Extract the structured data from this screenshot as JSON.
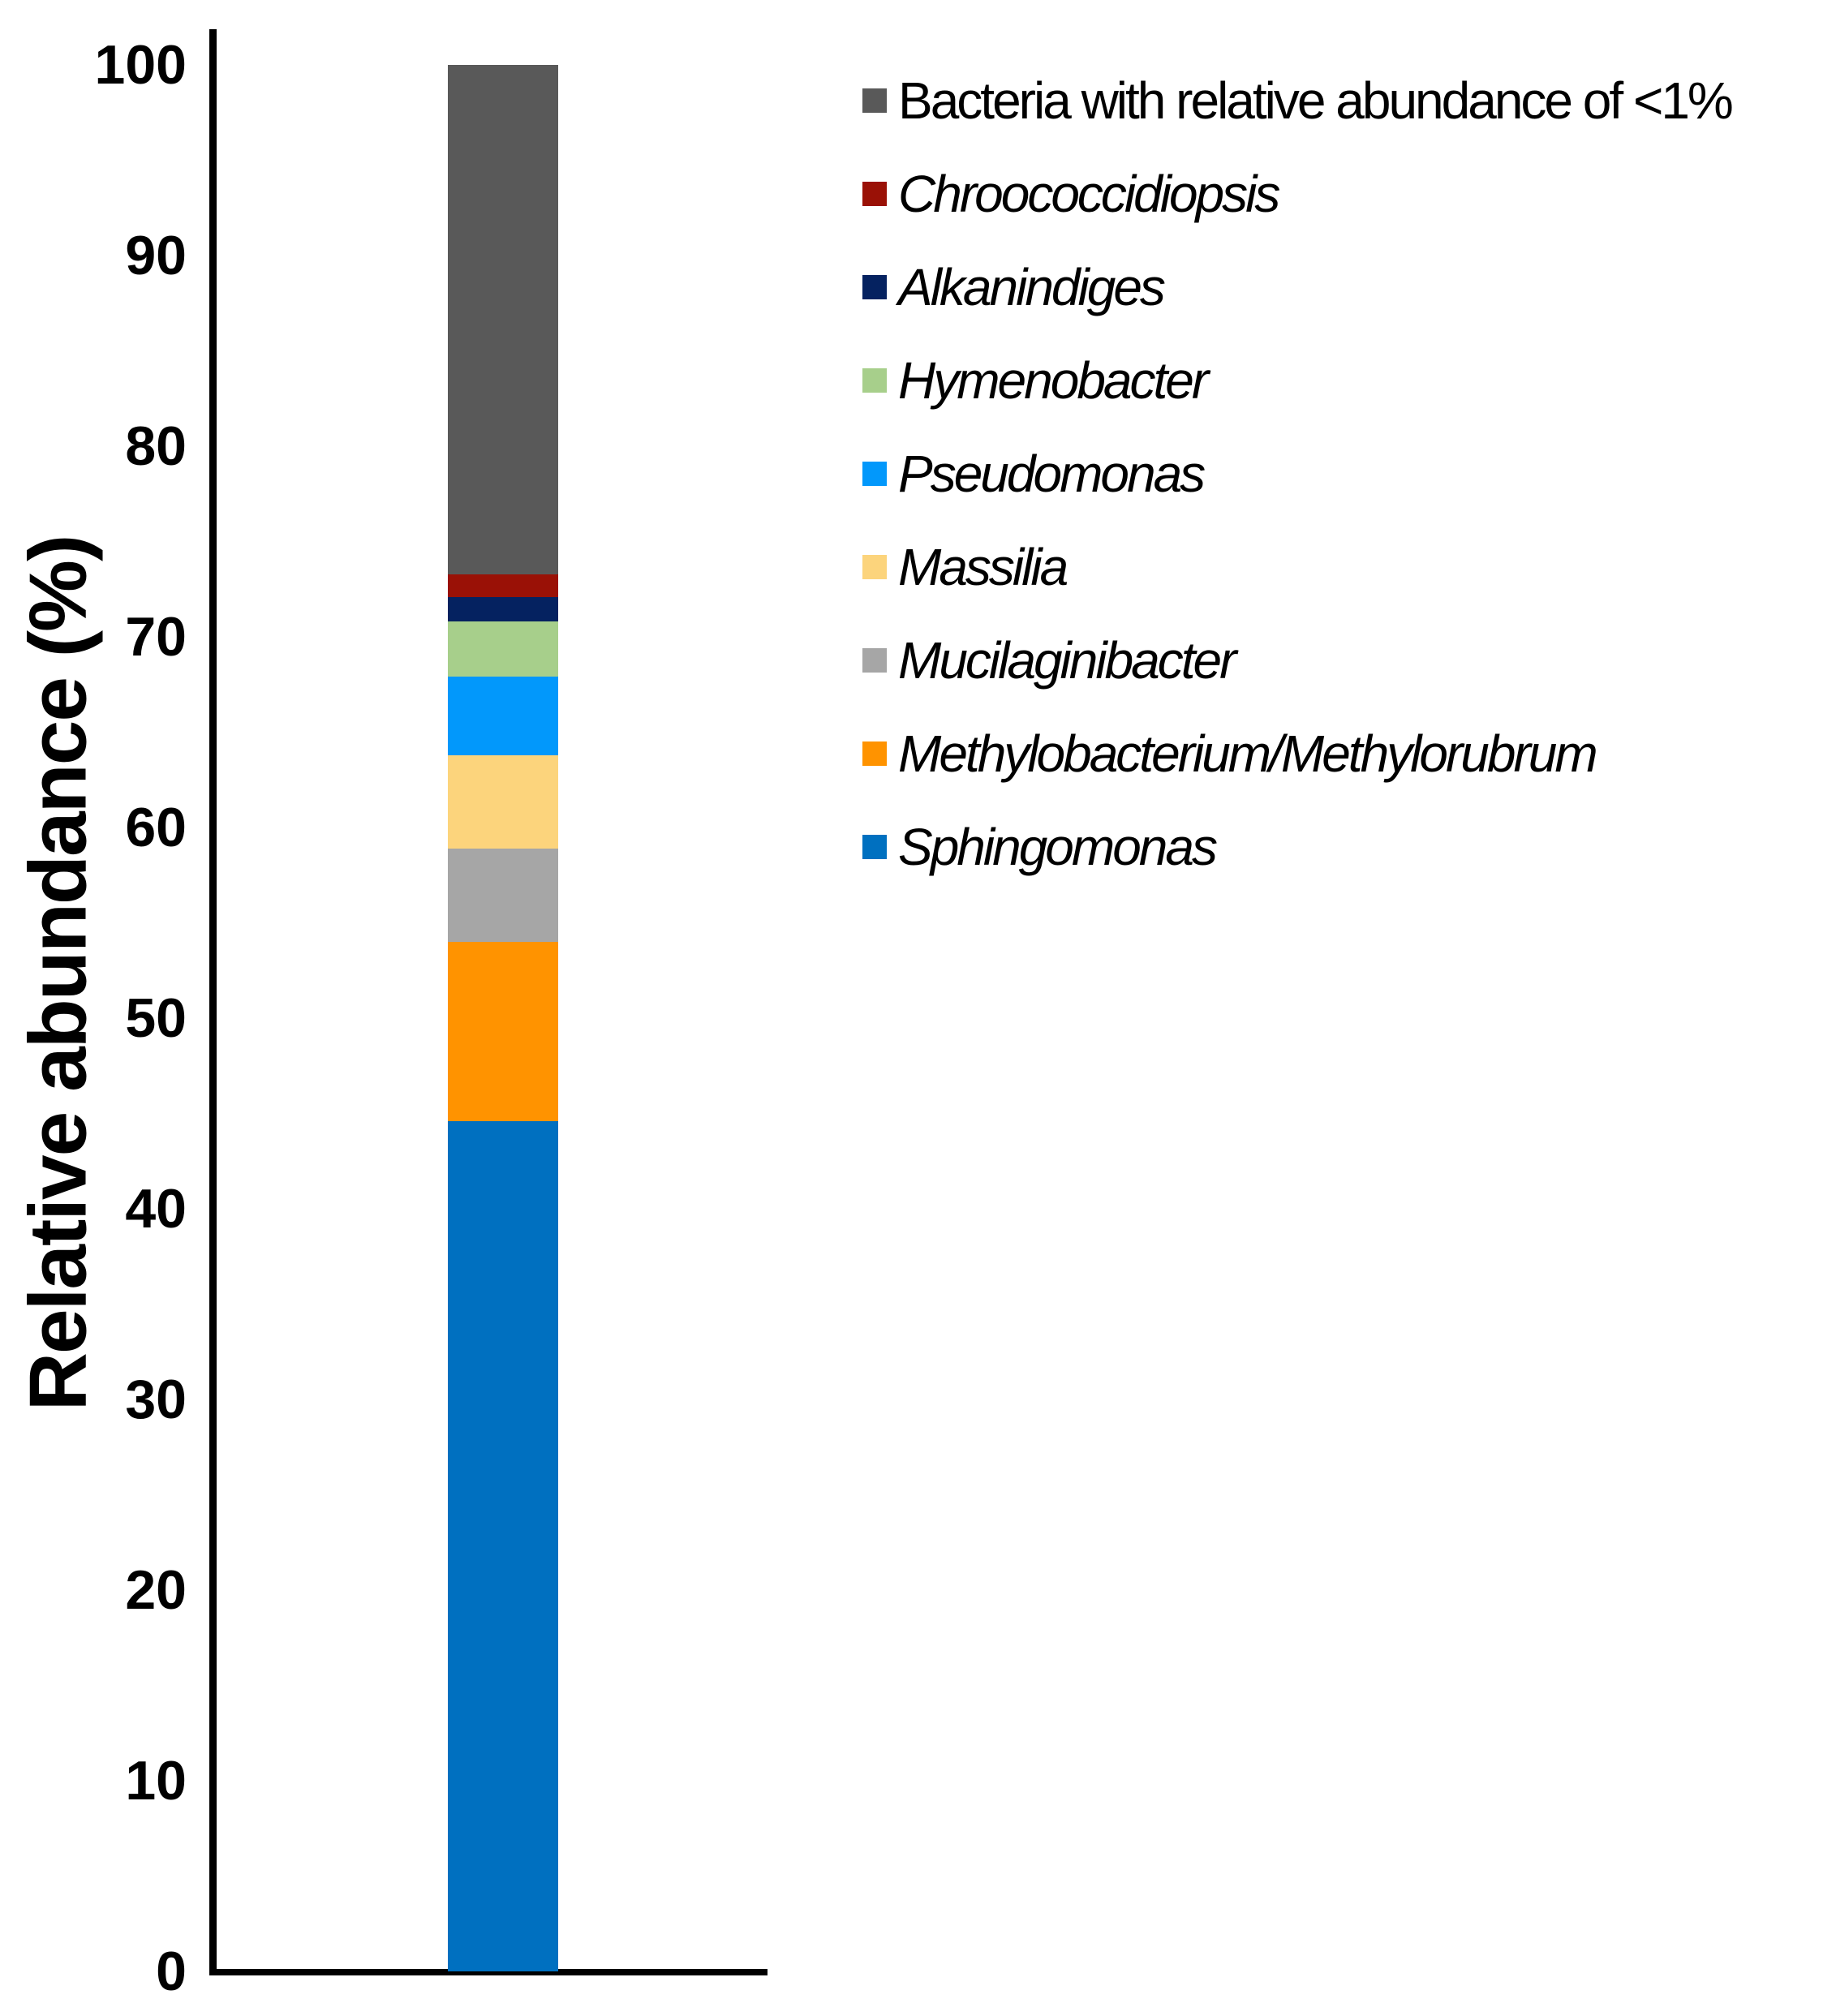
{
  "figure": {
    "background_color": "#FFFFFF",
    "axis_color": "#000000",
    "text_color": "#000000"
  },
  "y_axis": {
    "label": "Relative abundance (%)",
    "tick_labels": [
      "0",
      "10",
      "20",
      "30",
      "40",
      "50",
      "60",
      "70",
      "80",
      "90",
      "100"
    ],
    "min": 0,
    "max": 100
  },
  "legend": {
    "items": [
      {
        "label": "Bacteria with relative abundance of <1%",
        "color": "#595959",
        "italic": false
      },
      {
        "label": "Chroococcidiopsis",
        "color": "#9A1106",
        "italic": true
      },
      {
        "label": "Alkanindiges",
        "color": "#052260",
        "italic": true
      },
      {
        "label": "Hymenobacter",
        "color": "#A7CF8B",
        "italic": true
      },
      {
        "label": "Pseudomonas",
        "color": "#0298FB",
        "italic": true
      },
      {
        "label": "Massilia",
        "color": "#FCD47C",
        "italic": true
      },
      {
        "label": "Mucilaginibacter",
        "color": "#A6A6A6",
        "italic": true
      },
      {
        "label": "Methylobacterium/Methylorubrum",
        "color": "#FF9300",
        "italic": true
      },
      {
        "label": "Sphingomonas",
        "color": "#0070C0",
        "italic": true
      }
    ]
  },
  "chart_data": {
    "type": "bar",
    "stacked": true,
    "orientation": "vertical",
    "categories": [
      ""
    ],
    "series": [
      {
        "name": "Sphingomonas",
        "values": [
          44.6
        ],
        "color": "#0070C0"
      },
      {
        "name": "Methylobacterium/Methylorubrum",
        "values": [
          9.4
        ],
        "color": "#FF9300"
      },
      {
        "name": "Mucilaginibacter",
        "values": [
          4.9
        ],
        "color": "#A6A6A6"
      },
      {
        "name": "Massilia",
        "values": [
          4.9
        ],
        "color": "#FCD47C"
      },
      {
        "name": "Pseudomonas",
        "values": [
          4.1
        ],
        "color": "#0298FB"
      },
      {
        "name": "Hymenobacter",
        "values": [
          2.9
        ],
        "color": "#A7CF8B"
      },
      {
        "name": "Alkanindiges",
        "values": [
          1.3
        ],
        "color": "#052260"
      },
      {
        "name": "Chroococcidiopsis",
        "values": [
          1.2
        ],
        "color": "#9A1106"
      },
      {
        "name": "Bacteria with relative abundance of <1%",
        "values": [
          26.7
        ],
        "color": "#595959"
      }
    ],
    "title": "",
    "xlabel": "",
    "ylabel": "Relative abundance (%)",
    "ylim": [
      0,
      100
    ],
    "grid": false,
    "legend_position": "upper right",
    "bar_order": "bottom_to_top"
  }
}
